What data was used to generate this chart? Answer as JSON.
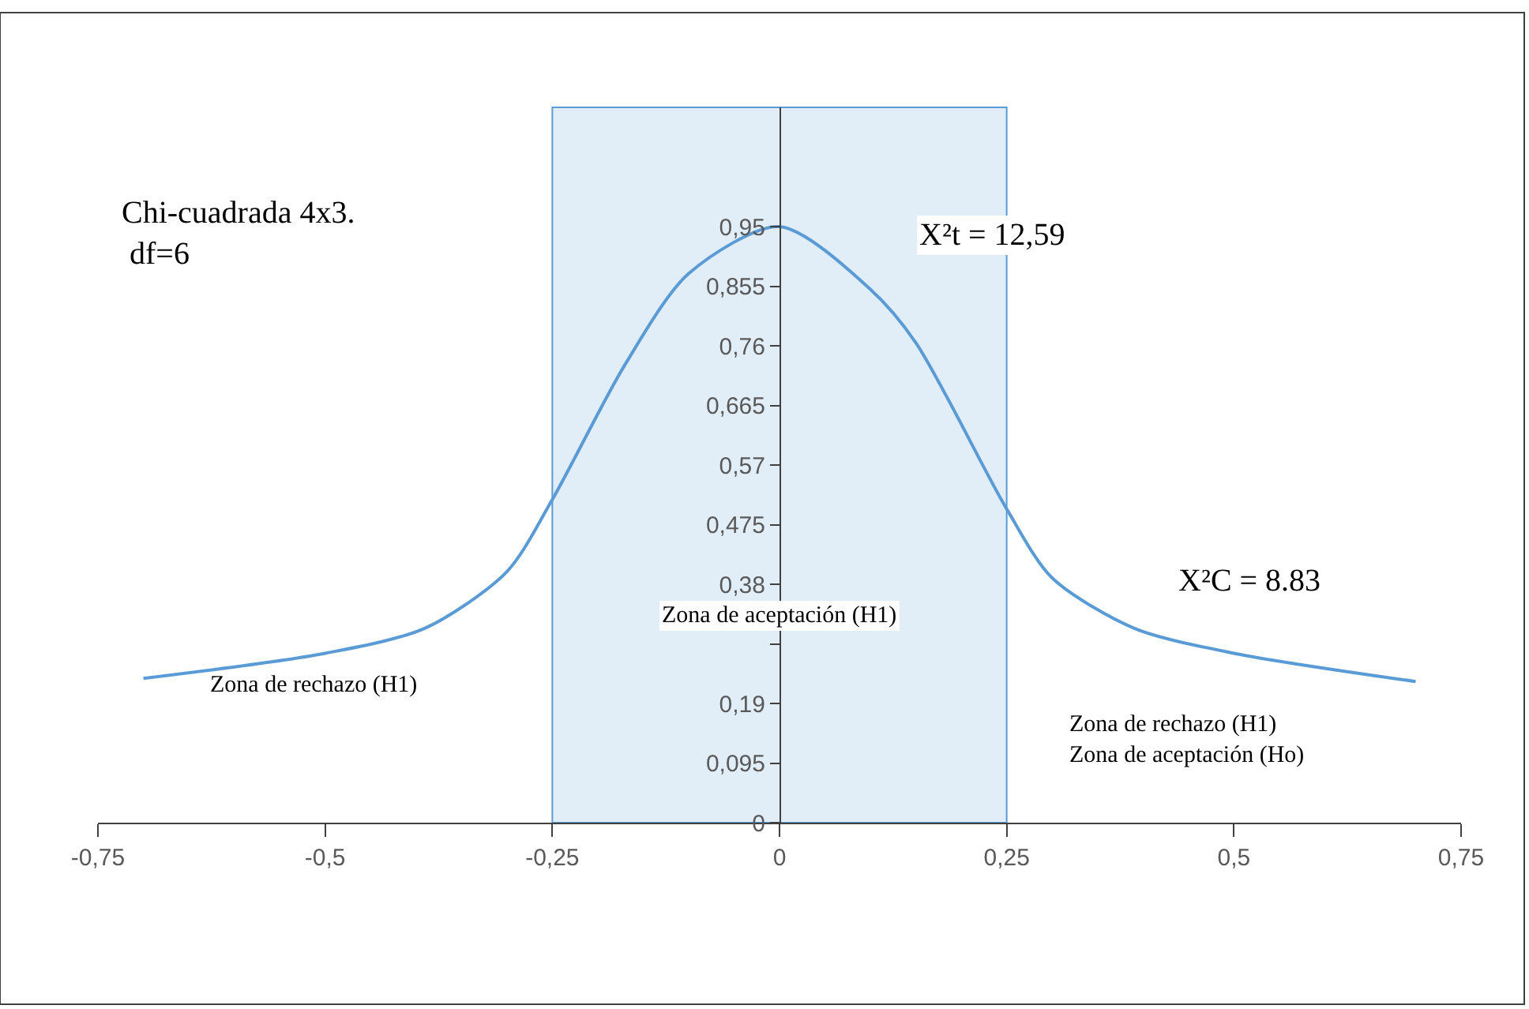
{
  "chart_data": {
    "type": "line",
    "x": [
      -0.7,
      -0.5,
      -0.39,
      -0.3,
      -0.25,
      -0.17,
      -0.1,
      0,
      0.1,
      0.15,
      0.25,
      0.3,
      0.39,
      0.5,
      0.7
    ],
    "series": [
      {
        "color": "#5b9bd5",
        "values": [
          0.23,
          0.27,
          0.31,
          0.4,
          0.515,
          0.73,
          0.875,
          0.95,
          0.85,
          0.765,
          0.5,
          0.39,
          0.31,
          0.27,
          0.225
        ]
      }
    ],
    "xlim": [
      -0.75,
      0.75
    ],
    "xticks": [
      {
        "value": -0.75,
        "label": "-0,75"
      },
      {
        "value": -0.5,
        "label": "-0,5"
      },
      {
        "value": -0.25,
        "label": "-0,25"
      },
      0,
      {
        "value": 0.25,
        "label": "0,25"
      },
      {
        "value": 0.5,
        "label": "0,5"
      },
      {
        "value": 0.75,
        "label": "0,75"
      }
    ],
    "ylim": [
      0,
      1.14
    ],
    "yticks": [
      0,
      {
        "value": 0.095,
        "label": "0,095"
      },
      {
        "value": 0.19,
        "label": "0,19"
      },
      {
        "value": 0.285,
        "label": null
      },
      {
        "value": 0.38,
        "label": "0,38"
      },
      {
        "value": 0.475,
        "label": "0,475"
      },
      {
        "value": 0.57,
        "label": "0,57"
      },
      {
        "value": 0.665,
        "label": "0,665"
      },
      {
        "value": 0.76,
        "label": "0,76"
      },
      {
        "value": 0.855,
        "label": "0,855"
      },
      {
        "value": 0.95,
        "label": "0,95"
      }
    ],
    "bands": [
      {
        "axis": "x",
        "from": -0.25,
        "to": 0.25,
        "color": "#5b9bd5",
        "label": "Zona de aceptación (H1)"
      }
    ],
    "annotations": [
      "Chi-cuadrada 4x3.\n df=6",
      "X²t = 12,59",
      "X²C = 8.83",
      "Zona de rechazo (H1)",
      "Zona de rechazo (H1)\nZona de aceptación (Ho)"
    ],
    "grid": false,
    "marker": "none",
    "line_style": "solid"
  }
}
